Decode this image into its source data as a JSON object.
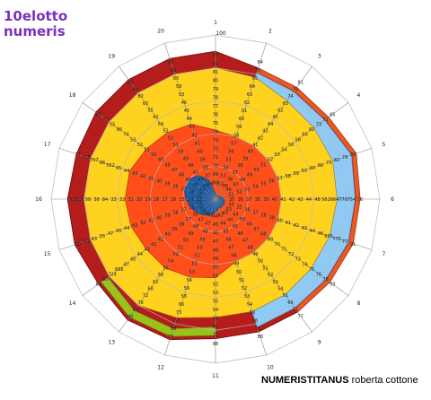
{
  "title": {
    "line1": "10elotto",
    "line2": "numeris"
  },
  "credit": {
    "bold": "NUMERISTITANUS",
    "rest": " roberta cottone"
  },
  "scale": {
    "max_label": "100"
  },
  "spokes": [
    "1",
    "2",
    "3",
    "4",
    "5",
    "6",
    "7",
    "8",
    "9",
    "10",
    "11",
    "12",
    "13",
    "14",
    "15",
    "16",
    "17",
    "18",
    "19",
    "20"
  ],
  "colors": {
    "outer_ring": "#b51d1d",
    "outer_ring_left": "#e85a20",
    "light_blue": "#8dcaf5",
    "green": "#9ac21b",
    "yellow": "#ffd21f",
    "orange": "#ff4e1a",
    "blue": "#1c5fa8",
    "grid": "#b8b8b8",
    "title": "#7b2fbe"
  },
  "chart_data": {
    "type": "radar",
    "axes": [
      "1",
      "2",
      "3",
      "4",
      "5",
      "6",
      "7",
      "8",
      "9",
      "10",
      "11",
      "12",
      "13",
      "14",
      "15",
      "16",
      "17",
      "18",
      "19",
      "20"
    ],
    "rmax": 100,
    "bands": [
      {
        "name": "outer",
        "color": "#b51d1d",
        "values": [
          90,
          84,
          84,
          85,
          90,
          88,
          88,
          86,
          85,
          85,
          85,
          90,
          91,
          88,
          90,
          90,
          89,
          90,
          90,
          90
        ]
      },
      {
        "name": "yellow",
        "color": "#ffd21f",
        "values": [
          80,
          78,
          74,
          74,
          75,
          74,
          73,
          72,
          72,
          72,
          72,
          76,
          80,
          80,
          80,
          80,
          80,
          80,
          80,
          80
        ]
      },
      {
        "name": "orange",
        "color": "#ff4e1a",
        "values": [
          42,
          40,
          40,
          40,
          40,
          40,
          40,
          40,
          40,
          40,
          48,
          50,
          52,
          52,
          54,
          55,
          55,
          52,
          50,
          48
        ]
      },
      {
        "name": "blue",
        "color": "#1c5fa8",
        "values": [
          3,
          2,
          3,
          3,
          4,
          5,
          6,
          6,
          6,
          6,
          8,
          10,
          12,
          14,
          16,
          18,
          20,
          20,
          18,
          12
        ]
      }
    ],
    "rows": [
      [
        "83",
        "82",
        "81",
        "80",
        "79",
        "78",
        "77",
        "76",
        "75",
        "74",
        "73",
        "72",
        "71",
        "70",
        "69",
        "68"
      ],
      [
        "84",
        "76",
        "65",
        "64",
        "63",
        "62",
        "61",
        "60",
        "59",
        "58",
        "57",
        "56",
        "55",
        "54",
        "53",
        "52"
      ],
      [
        "81",
        "79",
        "74",
        "63",
        "62",
        "45",
        "44",
        "43",
        "42",
        "41",
        "40",
        "39",
        "38",
        "37",
        "36",
        "35"
      ],
      [
        "85",
        "71",
        "73",
        "82",
        "60",
        "58",
        "56",
        "54",
        "53",
        "52",
        "51",
        "50",
        "49",
        "48",
        "47",
        "46"
      ],
      [
        "86",
        "79",
        "82",
        "73",
        "66",
        "60",
        "53",
        "59",
        "58",
        "57",
        "56",
        "55",
        "54",
        "53",
        "52",
        "51"
      ],
      [
        "76",
        "754",
        "770",
        "664",
        "562",
        "48",
        "44",
        "43",
        "42",
        "41",
        "40",
        "39",
        "38",
        "37",
        "36",
        "35"
      ],
      [
        "91",
        "77",
        "775",
        "665",
        "46",
        "44",
        "43",
        "42",
        "41",
        "40",
        "39",
        "38",
        "37",
        "36",
        "35",
        "34"
      ],
      [
        "93",
        "78",
        "76",
        "75",
        "74",
        "73",
        "72",
        "71",
        "70",
        "69",
        "68",
        "67",
        "66",
        "65",
        "64",
        "63"
      ],
      [
        "77",
        "71",
        "66",
        "51",
        "54",
        "53",
        "52",
        "51",
        "50",
        "49",
        "48",
        "47",
        "46",
        "45",
        "44",
        "43"
      ],
      [
        "88",
        "76",
        "66",
        "59",
        "54",
        "53",
        "52",
        "51",
        "50",
        "49",
        "48",
        "47",
        "46",
        "45",
        "44",
        "43"
      ],
      [
        "88",
        "73",
        "85",
        "56",
        "54",
        "55",
        "53",
        "52",
        "51",
        "50",
        "49",
        "48",
        "47",
        "46",
        "45",
        "44"
      ],
      [
        "79",
        "88",
        "79",
        "73",
        "66",
        "58",
        "56",
        "54",
        "53",
        "52",
        "51",
        "50",
        "49",
        "48",
        "47",
        "46"
      ],
      [
        "90",
        "84",
        "78",
        "72",
        "68",
        "62",
        "58",
        "56",
        "54",
        "52",
        "51",
        "50",
        "49",
        "48",
        "47",
        "46"
      ],
      [
        "84",
        "90",
        "724",
        "666",
        "47",
        "45",
        "44",
        "43",
        "42",
        "41",
        "40",
        "39",
        "38",
        "37",
        "36",
        "35"
      ],
      [
        "90",
        "725",
        "63",
        "55",
        "47",
        "45",
        "44",
        "43",
        "42",
        "41",
        "40",
        "39",
        "38",
        "37",
        "36",
        "35"
      ],
      [
        "748",
        "624",
        "58",
        "38",
        "84",
        "33",
        "32",
        "31",
        "30",
        "29",
        "28",
        "27",
        "26",
        "25",
        "24",
        "23"
      ],
      [
        "77",
        "715",
        "707",
        "86",
        "562",
        "45",
        "44",
        "43",
        "42",
        "41",
        "40",
        "39",
        "38",
        "37",
        "36",
        "35"
      ],
      [
        "80",
        "75",
        "55",
        "66",
        "74",
        "53",
        "52",
        "51",
        "50",
        "49",
        "48",
        "47",
        "46",
        "45",
        "44",
        "43"
      ],
      [
        "80",
        "88",
        "80",
        "60",
        "55",
        "42",
        "54",
        "53",
        "52",
        "51",
        "50",
        "49",
        "48",
        "47",
        "46",
        "45"
      ],
      [
        "80",
        "80",
        "65",
        "58",
        "53",
        "46",
        "45",
        "44",
        "43",
        "42",
        "41",
        "40",
        "39",
        "38",
        "37",
        "36"
      ]
    ]
  }
}
